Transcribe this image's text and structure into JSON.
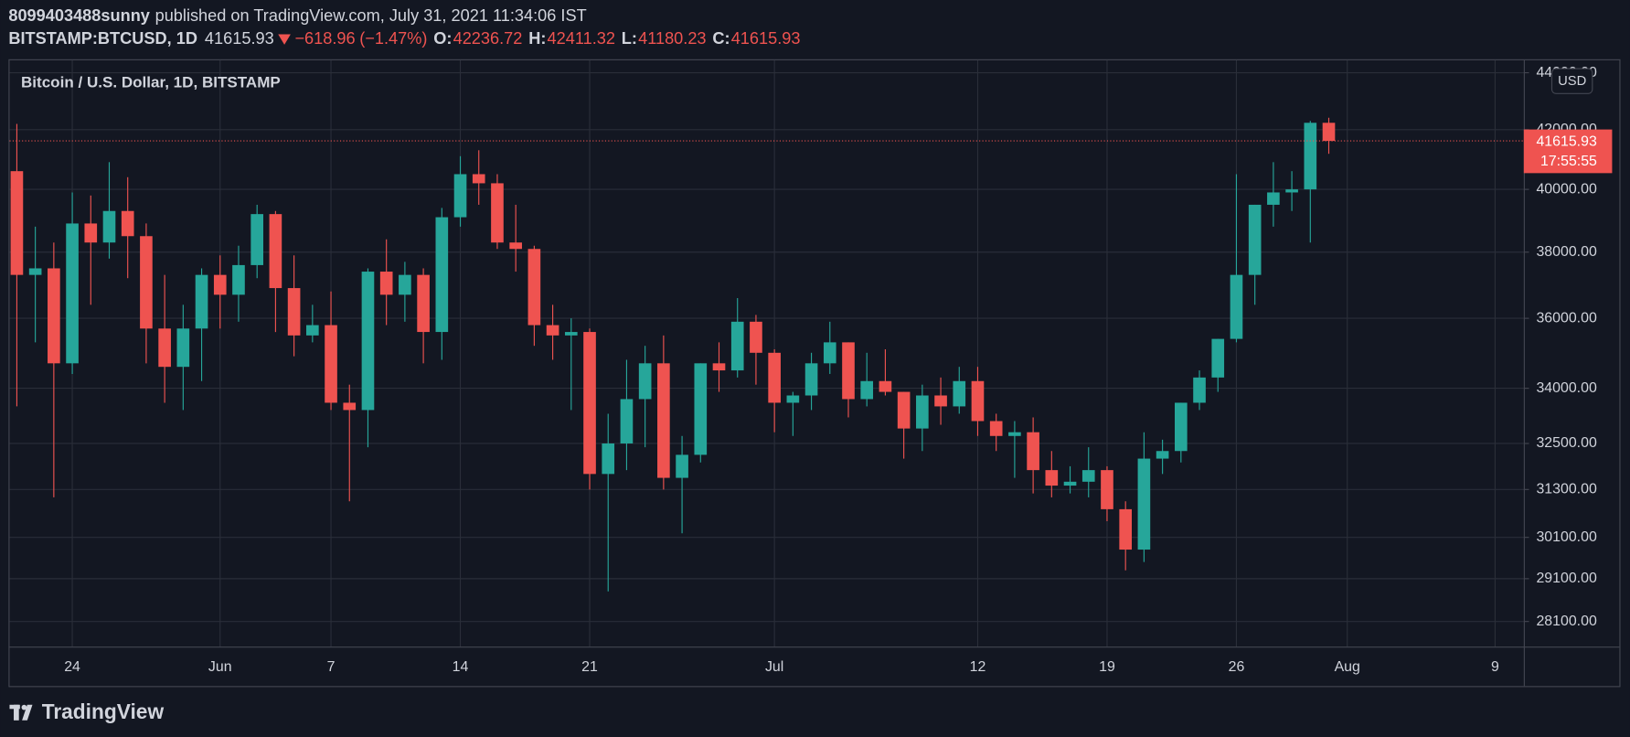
{
  "header": {
    "author": "8099403488sunny",
    "published": "published on TradingView.com, July 31, 2021 11:34:06 IST",
    "symbol": "BITSTAMP:BTCUSD, 1D",
    "change": "−618.96",
    "change_pct": "(−1.47%)",
    "ohlc_labels": [
      "O:",
      "H:",
      "L:",
      "C:"
    ]
  },
  "chart_data": {
    "type": "candlestick",
    "title": "Bitcoin / U.S. Dollar, 1D, BITSTAMP",
    "currency": "USD",
    "countdown": "17:55:55",
    "up_color": "#26a69a",
    "down_color": "#ef5350",
    "ylog": true,
    "grid": true,
    "x": [
      "2021-05-21",
      "2021-05-22",
      "2021-05-23",
      "2021-05-24",
      "2021-05-25",
      "2021-05-26",
      "2021-05-27",
      "2021-05-28",
      "2021-05-29",
      "2021-05-30",
      "2021-05-31",
      "2021-06-01",
      "2021-06-02",
      "2021-06-03",
      "2021-06-04",
      "2021-06-05",
      "2021-06-06",
      "2021-06-07",
      "2021-06-08",
      "2021-06-09",
      "2021-06-10",
      "2021-06-11",
      "2021-06-12",
      "2021-06-13",
      "2021-06-14",
      "2021-06-15",
      "2021-06-16",
      "2021-06-17",
      "2021-06-18",
      "2021-06-19",
      "2021-06-20",
      "2021-06-21",
      "2021-06-22",
      "2021-06-23",
      "2021-06-24",
      "2021-06-25",
      "2021-06-26",
      "2021-06-27",
      "2021-06-28",
      "2021-06-29",
      "2021-06-30",
      "2021-07-01",
      "2021-07-02",
      "2021-07-03",
      "2021-07-04",
      "2021-07-05",
      "2021-07-06",
      "2021-07-07",
      "2021-07-08",
      "2021-07-09",
      "2021-07-10",
      "2021-07-11",
      "2021-07-12",
      "2021-07-13",
      "2021-07-14",
      "2021-07-15",
      "2021-07-16",
      "2021-07-17",
      "2021-07-18",
      "2021-07-19",
      "2021-07-20",
      "2021-07-21",
      "2021-07-22",
      "2021-07-23",
      "2021-07-24",
      "2021-07-25",
      "2021-07-26",
      "2021-07-27",
      "2021-07-28",
      "2021-07-29",
      "2021-07-30",
      "2021-07-31"
    ],
    "open": [
      40600,
      37300,
      37500,
      34700,
      38900,
      38300,
      39300,
      38500,
      35700,
      34600,
      35700,
      37300,
      36700,
      37600,
      39200,
      36900,
      35500,
      35800,
      33600,
      33400,
      37400,
      36700,
      37300,
      35600,
      39100,
      40500,
      40200,
      38300,
      38100,
      35800,
      35500,
      35600,
      31700,
      32500,
      33700,
      34700,
      31600,
      32200,
      34700,
      34500,
      35900,
      35000,
      33600,
      33800,
      34700,
      35300,
      33700,
      34200,
      33900,
      32900,
      33800,
      33500,
      34200,
      33100,
      32700,
      32800,
      31800,
      31400,
      31500,
      31800,
      30800,
      29800,
      32100,
      32300,
      33600,
      34300,
      35400,
      37300,
      39500,
      39900,
      40000,
      42236.72
    ],
    "high": [
      42200,
      38800,
      38300,
      39900,
      39800,
      40900,
      40400,
      38900,
      37300,
      36400,
      37500,
      37900,
      38200,
      39500,
      39300,
      37900,
      36400,
      36800,
      34100,
      37500,
      38400,
      37700,
      37500,
      39400,
      41100,
      41300,
      40500,
      39500,
      38200,
      36400,
      36000,
      35700,
      33300,
      34800,
      35200,
      35500,
      32700,
      34700,
      35300,
      36600,
      36100,
      35100,
      33900,
      35000,
      35900,
      35300,
      35000,
      35100,
      33900,
      34100,
      34300,
      34600,
      34600,
      33300,
      33100,
      33200,
      32300,
      31900,
      32400,
      31900,
      31000,
      32800,
      32600,
      33600,
      34500,
      35400,
      40500,
      39500,
      40900,
      40600,
      42300,
      42411.32
    ],
    "low": [
      33500,
      35300,
      31100,
      34400,
      36400,
      37800,
      37200,
      34700,
      33600,
      33400,
      34200,
      35700,
      35900,
      37200,
      35600,
      34900,
      35300,
      33400,
      31000,
      32400,
      35800,
      35900,
      34700,
      34800,
      38800,
      39500,
      38100,
      37400,
      35200,
      34800,
      33400,
      31300,
      28800,
      31800,
      32400,
      31300,
      30200,
      32000,
      33900,
      34300,
      34100,
      32800,
      32700,
      33400,
      34400,
      33200,
      33500,
      33800,
      32100,
      32300,
      33000,
      33300,
      32700,
      32300,
      31600,
      31200,
      31100,
      31200,
      31100,
      30500,
      29300,
      29500,
      31700,
      32000,
      33400,
      33900,
      35300,
      36400,
      38800,
      39300,
      38300,
      41180.23
    ],
    "close": [
      37300,
      37500,
      34700,
      38900,
      38300,
      39300,
      38500,
      35700,
      34600,
      35700,
      37300,
      36700,
      37600,
      39200,
      36900,
      35500,
      35800,
      33600,
      33400,
      37400,
      36700,
      37300,
      35600,
      39100,
      40500,
      40200,
      38300,
      38100,
      35800,
      35500,
      35600,
      31700,
      32500,
      33700,
      34700,
      31600,
      32200,
      34700,
      34500,
      35900,
      35000,
      33600,
      33800,
      34700,
      35300,
      33700,
      34200,
      33900,
      32900,
      33800,
      33500,
      34200,
      33100,
      32700,
      32800,
      31800,
      31400,
      31500,
      31800,
      30800,
      29800,
      32100,
      32300,
      33600,
      34300,
      35400,
      37300,
      39500,
      39900,
      40000,
      42236.72,
      41615.93
    ],
    "ylim": [
      27530,
      44450
    ],
    "yticks": [
      {
        "value": 28100,
        "label": "28100.00"
      },
      {
        "value": 29100,
        "label": "29100.00"
      },
      {
        "value": 30100,
        "label": "30100.00"
      },
      {
        "value": 31300,
        "label": "31300.00"
      },
      {
        "value": 32500,
        "label": "32500.00"
      },
      {
        "value": 34000,
        "label": "34000.00"
      },
      {
        "value": 36000,
        "label": "36000.00"
      },
      {
        "value": 38000,
        "label": "38000.00"
      },
      {
        "value": 40000,
        "label": "40000.00"
      },
      {
        "value": 42000,
        "label": "42000.00"
      },
      {
        "value": 44000,
        "label": "44000.00"
      }
    ],
    "xticks": [
      {
        "value": "2021-05-24",
        "label": "24"
      },
      {
        "value": "2021-06-01",
        "label": "Jun"
      },
      {
        "value": "2021-06-07",
        "label": "7"
      },
      {
        "value": "2021-06-14",
        "label": "14"
      },
      {
        "value": "2021-06-21",
        "label": "21"
      },
      {
        "value": "2021-07-01",
        "label": "Jul"
      },
      {
        "value": "2021-07-12",
        "label": "12"
      },
      {
        "value": "2021-07-19",
        "label": "19"
      },
      {
        "value": "2021-07-26",
        "label": "26"
      },
      {
        "value": "2021-08-01",
        "label": "Aug"
      },
      {
        "value": "2021-08-09",
        "label": "9"
      }
    ]
  },
  "footer": {
    "brand": "TradingView"
  }
}
